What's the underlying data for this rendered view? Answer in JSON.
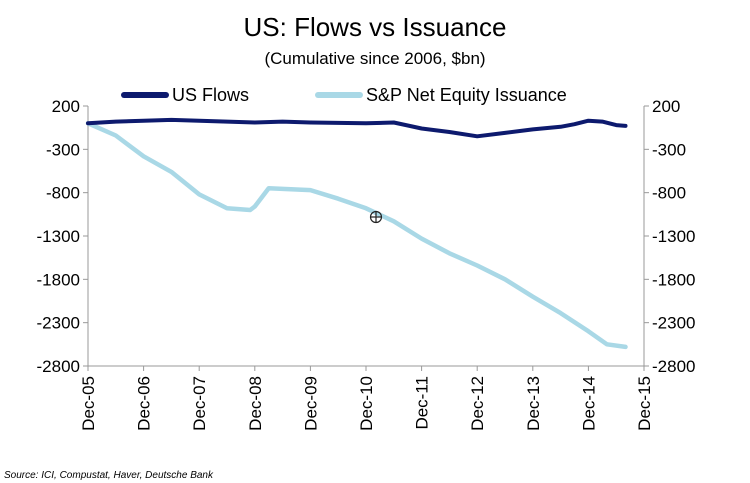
{
  "chart_data": {
    "type": "line",
    "title": "US: Flows vs Issuance",
    "subtitle": "(Cumulative since 2006, $bn)",
    "source": "Source: ICI, Compustat, Haver, Deutsche Bank",
    "xticks": [
      "Dec-05",
      "Dec-06",
      "Dec-07",
      "Dec-08",
      "Dec-09",
      "Dec-10",
      "Dec-11",
      "Dec-12",
      "Dec-13",
      "Dec-14",
      "Dec-15"
    ],
    "xlim": [
      "Dec-05",
      "Dec-15"
    ],
    "ylim": [
      -2800,
      200
    ],
    "yticks": [
      200,
      -300,
      -800,
      -1300,
      -1800,
      -2300,
      -2800
    ],
    "y2ticks": [
      200,
      -300,
      -800,
      -1300,
      -1800,
      -2300,
      -2800
    ],
    "grid": false,
    "legend_position": "top",
    "series": [
      {
        "name": "US Flows",
        "color": "#0d1a6e",
        "x": [
          "Dec-05",
          "Jun-06",
          "Dec-06",
          "Jun-07",
          "Dec-07",
          "Jun-08",
          "Dec-08",
          "Jun-09",
          "Dec-09",
          "Jun-10",
          "Dec-10",
          "Jun-11",
          "Dec-11",
          "Jun-12",
          "Dec-12",
          "Jun-13",
          "Dec-13",
          "Jun-14",
          "Sep-14",
          "Dec-14",
          "Mar-15",
          "Jun-15",
          "Aug-15"
        ],
        "values": [
          0,
          20,
          30,
          40,
          30,
          20,
          10,
          20,
          10,
          5,
          0,
          10,
          -60,
          -100,
          -150,
          -110,
          -70,
          -40,
          -10,
          30,
          20,
          -20,
          -30
        ]
      },
      {
        "name": "S&P Net Equity Issuance",
        "color": "#a9d8e6",
        "x": [
          "Dec-05",
          "Jun-06",
          "Dec-06",
          "Jun-07",
          "Dec-07",
          "Jun-08",
          "Nov-08",
          "Dec-08",
          "Mar-09",
          "Dec-09",
          "Jun-10",
          "Dec-10",
          "Jun-11",
          "Dec-11",
          "Jun-12",
          "Dec-12",
          "Jun-13",
          "Dec-13",
          "Jun-14",
          "Dec-14",
          "Apr-15",
          "Aug-15"
        ],
        "values": [
          0,
          -140,
          -380,
          -560,
          -820,
          -980,
          -1000,
          -960,
          -750,
          -770,
          -870,
          -980,
          -1130,
          -1330,
          -1500,
          -1640,
          -1800,
          -2000,
          -2190,
          -2400,
          -2550,
          -2580
        ]
      }
    ]
  }
}
